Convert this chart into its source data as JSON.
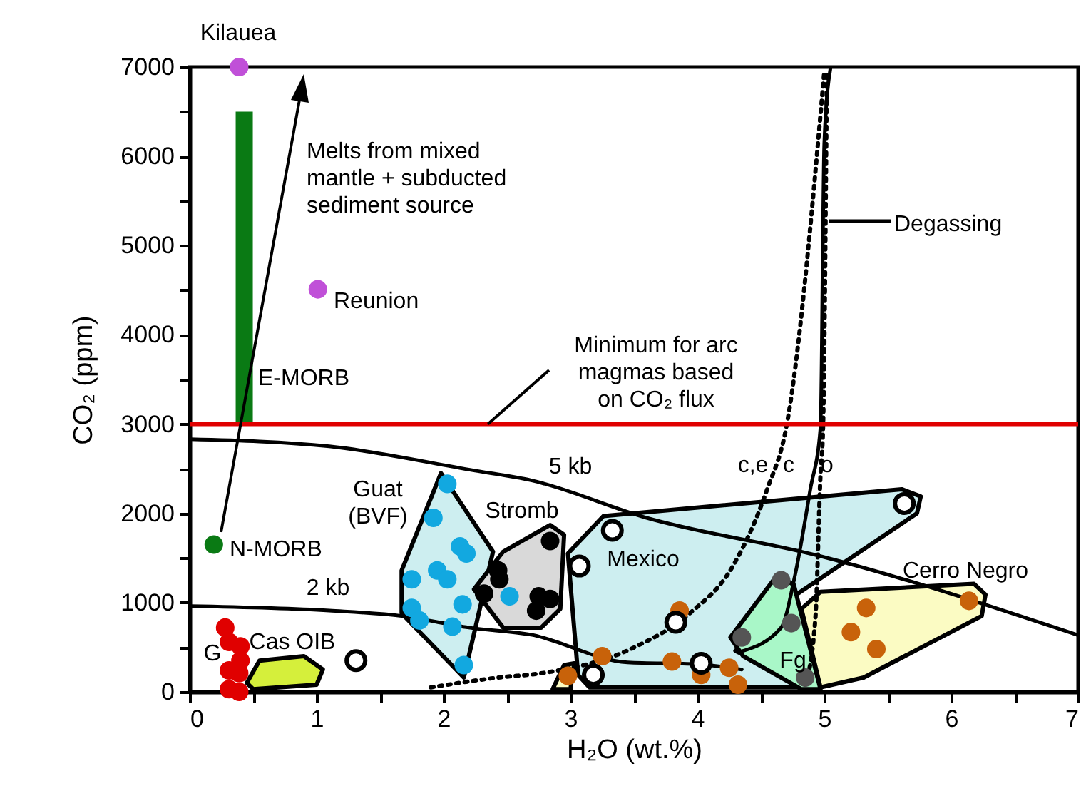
{
  "chart_data": {
    "type": "scatter",
    "xlabel": "H₂O (wt.%)",
    "ylabel": "CO₂ (ppm)",
    "xlim": [
      0,
      7
    ],
    "ylim": [
      0,
      7000
    ],
    "xticks": [
      0,
      {
        "value": 0.5,
        "label": null
      },
      1,
      {
        "value": 1.5,
        "label": null
      },
      2,
      {
        "value": 2.5,
        "label": null
      },
      3,
      {
        "value": 3.5,
        "label": null
      },
      4,
      {
        "value": 4.5,
        "label": null
      },
      5,
      {
        "value": 5.5,
        "label": null
      },
      6,
      {
        "value": 6.5,
        "label": null
      },
      7
    ],
    "yticks": [
      0,
      {
        "value": 500,
        "label": null
      },
      1000,
      {
        "value": 1500,
        "label": null
      },
      2000,
      {
        "value": 2500,
        "label": null
      },
      3000,
      {
        "value": 3500,
        "label": null
      },
      4000,
      {
        "value": 4500,
        "label": null
      },
      5000,
      {
        "value": 5500,
        "label": null
      },
      6000,
      {
        "value": 6500,
        "label": null
      },
      7000
    ],
    "grid": false,
    "series": [
      {
        "type": "area",
        "color": "#d5ef3b",
        "x": [
          0.45,
          0.55,
          0.9,
          1.05,
          1.0,
          0.5
        ],
        "values": [
          100,
          350,
          400,
          250,
          80,
          30
        ]
      },
      {
        "type": "area",
        "color": "#fbfbc3",
        "x": [
          2.86,
          2.95,
          3.03,
          3.0
        ],
        "values": [
          30,
          300,
          320,
          30
        ]
      },
      {
        "type": "area",
        "color": "#fbfbc3",
        "x": [
          4.82,
          4.97,
          6.18,
          6.27,
          6.24,
          5.31,
          4.97
        ],
        "values": [
          930,
          1120,
          1210,
          1090,
          850,
          160,
          50
        ]
      },
      {
        "type": "area",
        "color": "#cdeef0",
        "x": [
          1.98,
          2.39,
          2.16,
          1.67,
          1.67
        ],
        "values": [
          2450,
          1570,
          160,
          880,
          1360
        ]
      },
      {
        "type": "area",
        "color": "#d9d9d9",
        "x": [
          2.24,
          2.47,
          2.84,
          2.95,
          2.92,
          2.77,
          2.47
        ],
        "values": [
          1150,
          1570,
          1870,
          1760,
          930,
          720,
          720
        ]
      },
      {
        "type": "area",
        "color": "#cdeef0",
        "x": [
          3.26,
          5.61,
          5.76,
          5.73,
          4.76,
          4.3,
          4.9,
          3.15,
          3.06,
          2.98
        ],
        "values": [
          1970,
          2270,
          2190,
          2000,
          1070,
          460,
          50,
          50,
          190,
          1550
        ]
      },
      {
        "type": "area",
        "color": "#a9f7c8",
        "x": [
          4.26,
          4.63,
          4.76,
          4.97,
          4.82,
          4.36
        ],
        "values": [
          610,
          1310,
          1200,
          30,
          30,
          400
        ]
      },
      {
        "type": "line",
        "color": "#000000",
        "line_style": "solid",
        "x": [
          0,
          1.1,
          2.24,
          2.69,
          3.6,
          4.97,
          6.99
        ],
        "values": [
          2830,
          2750,
          2480,
          2370,
          1950,
          1520,
          640
        ]
      },
      {
        "type": "line",
        "color": "#000000",
        "line_style": "solid",
        "x": [
          0,
          1.1,
          1.67,
          2.2,
          2.69,
          3.45,
          4.0,
          4.35
        ],
        "values": [
          960,
          910,
          850,
          720,
          640,
          330,
          310,
          250
        ]
      },
      {
        "type": "line",
        "color": "#000000",
        "line_style": "solid",
        "x": [
          4.34,
          4.66,
          4.77,
          4.89,
          4.97,
          5.0,
          5.05
        ],
        "values": [
          450,
          720,
          1310,
          2270,
          2960,
          6150,
          7000
        ]
      },
      {
        "type": "line",
        "color": "#000000",
        "line_style": "dotted",
        "x": [
          1.9,
          2.43,
          2.78,
          3.52,
          3.94,
          4.28,
          4.55,
          4.7,
          5.0
        ],
        "values": [
          50,
          160,
          210,
          510,
          880,
          1410,
          2270,
          2960,
          6950
        ]
      },
      {
        "type": "line",
        "color": "#000000",
        "line_style": "dotted",
        "x": [
          4.85,
          4.93,
          4.97,
          4.99,
          5.02
        ],
        "values": [
          80,
          830,
          2430,
          2960,
          6950
        ]
      },
      {
        "type": "bar",
        "color": "#0a7a14",
        "x": [
          0.43
        ],
        "base": [
          3000
        ],
        "values": [
          3500
        ]
      },
      {
        "color": "#c050d8",
        "x": [
          0.39,
          1.01
        ],
        "values": [
          7000,
          4510
        ]
      },
      {
        "color": "#0a7a14",
        "x": [
          0.19
        ],
        "values": [
          1650
        ]
      },
      {
        "color": "#e00000",
        "x": [
          0.28,
          0.31,
          0.4,
          0.4,
          0.31,
          0.39,
          0.31,
          0.39
        ],
        "values": [
          720,
          560,
          510,
          350,
          240,
          210,
          30,
          0
        ]
      },
      {
        "color": "#12a8e0",
        "x": [
          2.03,
          1.92,
          2.13,
          2.18,
          1.95,
          2.03,
          1.75,
          1.75,
          2.15,
          1.81,
          2.07,
          2.16,
          2.52
        ],
        "values": [
          2330,
          1950,
          1630,
          1550,
          1360,
          1260,
          1260,
          940,
          980,
          800,
          730,
          300,
          1070
        ]
      },
      {
        "color": "#000000",
        "x": [
          2.84,
          2.43,
          2.44,
          2.32,
          2.75,
          2.84,
          2.73
        ],
        "values": [
          1690,
          1360,
          1260,
          1100,
          1070,
          1040,
          910
        ]
      },
      {
        "color": "#c8620a",
        "x": [
          6.14,
          5.33,
          5.21,
          5.41,
          3.86,
          3.25,
          2.98,
          3.8,
          4.03,
          4.25,
          4.32
        ],
        "values": [
          1020,
          940,
          670,
          480,
          910,
          400,
          180,
          340,
          190,
          270,
          80
        ]
      },
      {
        "color": "#ffffff",
        "x": [
          5.63,
          3.33,
          3.07,
          3.83,
          3.18,
          4.03,
          1.31
        ],
        "values": [
          2110,
          1810,
          1410,
          780,
          190,
          320,
          350
        ]
      },
      {
        "color": "#555555",
        "x": [
          4.66,
          4.74,
          4.35,
          4.85
        ],
        "values": [
          1250,
          770,
          610,
          160
        ]
      }
    ],
    "ref_lines": [
      {
        "axis": "y",
        "value": 3000,
        "color": "#e00000"
      }
    ],
    "annotations": [
      "Kilauea",
      "Melts from mixed\nmantle + subducted\nsediment source",
      "Reunion",
      {
        "text": "Minimum for arc\nmagmas based\non CO₂ flux",
        "x": 2.35,
        "y": 3000
      },
      "E-MORB",
      "Guat\n(BVF)",
      "Stromb",
      "5 kb",
      "c,e",
      "c",
      "o",
      "Mexico",
      "Cerro Negro",
      "N-MORB",
      "2 kb",
      "G",
      "Cas OIB",
      "Fg",
      "Degassing"
    ]
  }
}
